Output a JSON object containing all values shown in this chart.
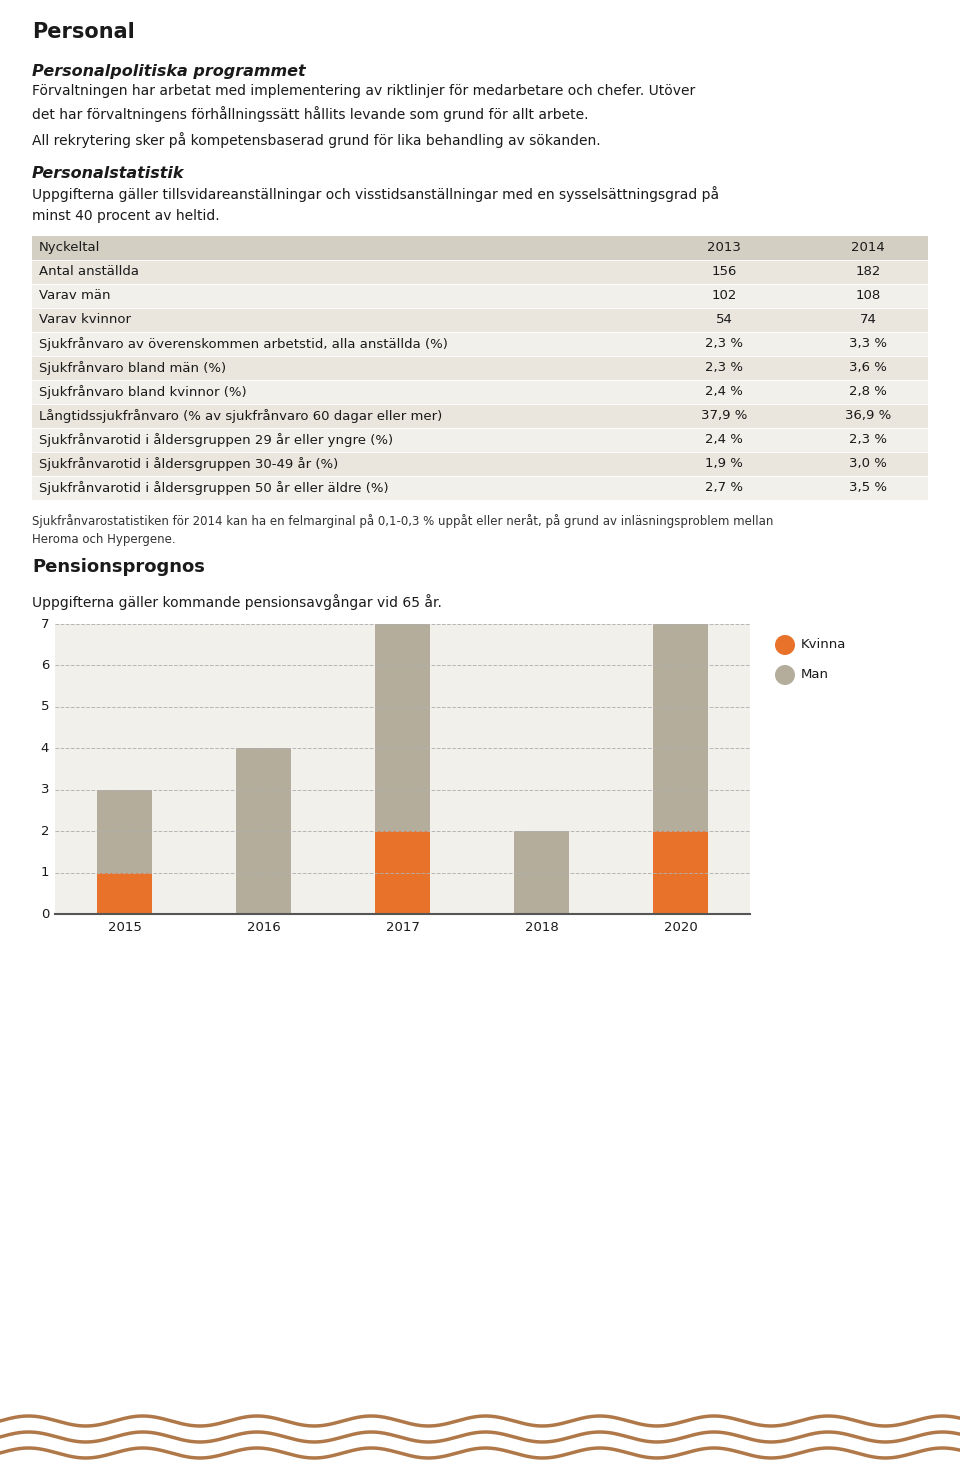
{
  "title": "Personal",
  "section1_title": "Personalpolitiska programmet",
  "section1_text1": "Förvaltningen har arbetat med implementering av riktlinjer för medarbetare och chefer. Utöver\ndet har förvaltningens förhållningssätt hållits levande som grund för allt arbete.",
  "section1_text2": "All rekrytering sker på kompetensbaserad grund för lika behandling av sökanden.",
  "section2_title": "Personalstatistik",
  "section2_text": "Uppgifterna gäller tillsvidareanställningar och visstidsanställningar med en sysselsättningsgrad på\nminst 40 procent av heltid.",
  "table_header": [
    "Nyckeltal",
    "2013",
    "2014"
  ],
  "table_rows": [
    [
      "Antal anställda",
      "156",
      "182"
    ],
    [
      "Varav män",
      "102",
      "108"
    ],
    [
      "Varav kvinnor",
      "54",
      "74"
    ],
    [
      "Sjukfrånvaro av överenskommen arbetstid, alla anställda (%)",
      "2,3 %",
      "3,3 %"
    ],
    [
      "Sjukfrånvaro bland män (%)",
      "2,3 %",
      "3,6 %"
    ],
    [
      "Sjukfrånvaro bland kvinnor (%)",
      "2,4 %",
      "2,8 %"
    ],
    [
      "Långtidssjukfrånvaro (% av sjukfrånvaro 60 dagar eller mer)",
      "37,9 %",
      "36,9 %"
    ],
    [
      "Sjukfrånvarotid i åldersgruppen 29 år eller yngre (%)",
      "2,4 %",
      "2,3 %"
    ],
    [
      "Sjukfrånvarotid i åldersgruppen 30-49 år (%)",
      "1,9 %",
      "3,0 %"
    ],
    [
      "Sjukfrånvarotid i åldersgruppen 50 år eller äldre (%)",
      "2,7 %",
      "3,5 %"
    ]
  ],
  "footnote": "Sjukfrånvarostatistiken för 2014 kan ha en felmarginal på 0,1-0,3 % uppåt eller neråt, på grund av inläsningsproblem mellan\nHeroma och Hypergene.",
  "section3_title": "Pensionsprognos",
  "section3_text": "Uppgifterna gäller kommande pensionsavgångar vid 65 år.",
  "bar_years": [
    "2015",
    "2016",
    "2017",
    "2018",
    "2020"
  ],
  "bar_kvinna": [
    1,
    0,
    2,
    0,
    2
  ],
  "bar_man": [
    2,
    4,
    5,
    2,
    5
  ],
  "bar_color_kvinna": "#e8722a",
  "bar_color_man": "#b5ad9b",
  "chart_bg": "#f2f0eb",
  "table_header_bg": "#d4cfc3",
  "table_row_bg_odd": "#eae6dd",
  "table_row_bg_even": "#f2f0eb",
  "grid_color": "#b0b0b0",
  "page_bg": "#ffffff",
  "wave_color": "#b07848",
  "ylim": [
    0,
    7
  ],
  "yticks": [
    0,
    1,
    2,
    3,
    4,
    5,
    6,
    7
  ]
}
